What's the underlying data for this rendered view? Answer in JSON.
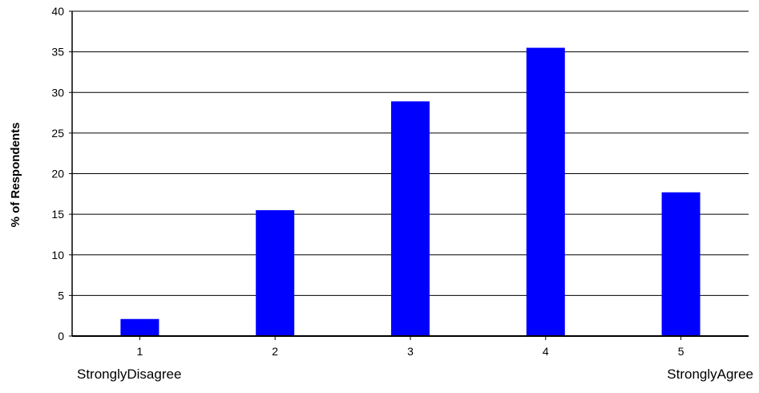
{
  "chart_data": {
    "type": "bar",
    "categories": [
      "1",
      "2",
      "3",
      "4",
      "5"
    ],
    "category_sublabels": [
      "StronglyDisagree",
      "",
      "",
      "",
      "StronglyAgree"
    ],
    "values": [
      2.1,
      15.5,
      28.9,
      35.5,
      17.7
    ],
    "title": "",
    "xlabel": "",
    "ylabel": "% of Respondents",
    "ylim": [
      0,
      40
    ],
    "yticks": [
      "0",
      "5",
      "10",
      "15",
      "20",
      "25",
      "30",
      "35",
      "40"
    ],
    "grid": true,
    "legend": "none",
    "bar_color": "#0000ff"
  }
}
